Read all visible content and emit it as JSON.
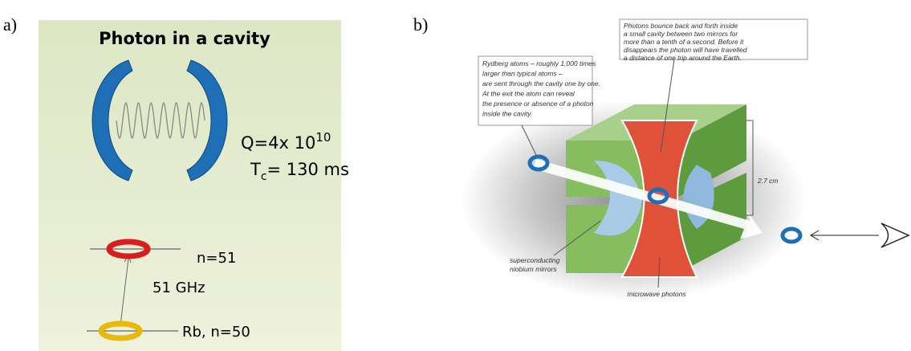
{
  "panel_a": {
    "label": "a)",
    "title": "Photon in a cavity",
    "q_value": {
      "base": "Q=4x 10",
      "sup": "10"
    },
    "cavity_time": {
      "base": "T",
      "sub": "c",
      "rest": "= 130 ms"
    },
    "upper_level": "n=51",
    "transition": "51 GHz",
    "lower_level": "Rb, n=50"
  },
  "panel_b": {
    "label": "b)",
    "atoms_note": [
      "Rydberg atoms – roughly 1,000 times",
      "larger than typical atoms –",
      "are sent through the cavity one by one.",
      "At the exit the atom can reveal",
      "the presence or absence of a photon",
      "inside the cavity."
    ],
    "photons_note": [
      "Photons bounce back and forth inside",
      "a small cavity between two mirrors for",
      "more than a tenth of a second. Before it",
      "disappears the photon will have travelled",
      "a distance of one trip around the Earth."
    ],
    "size": "2.7 cm",
    "mirrors_label": [
      "superconducting",
      "niobium mirrors"
    ],
    "photons_label": "microwave photons"
  }
}
